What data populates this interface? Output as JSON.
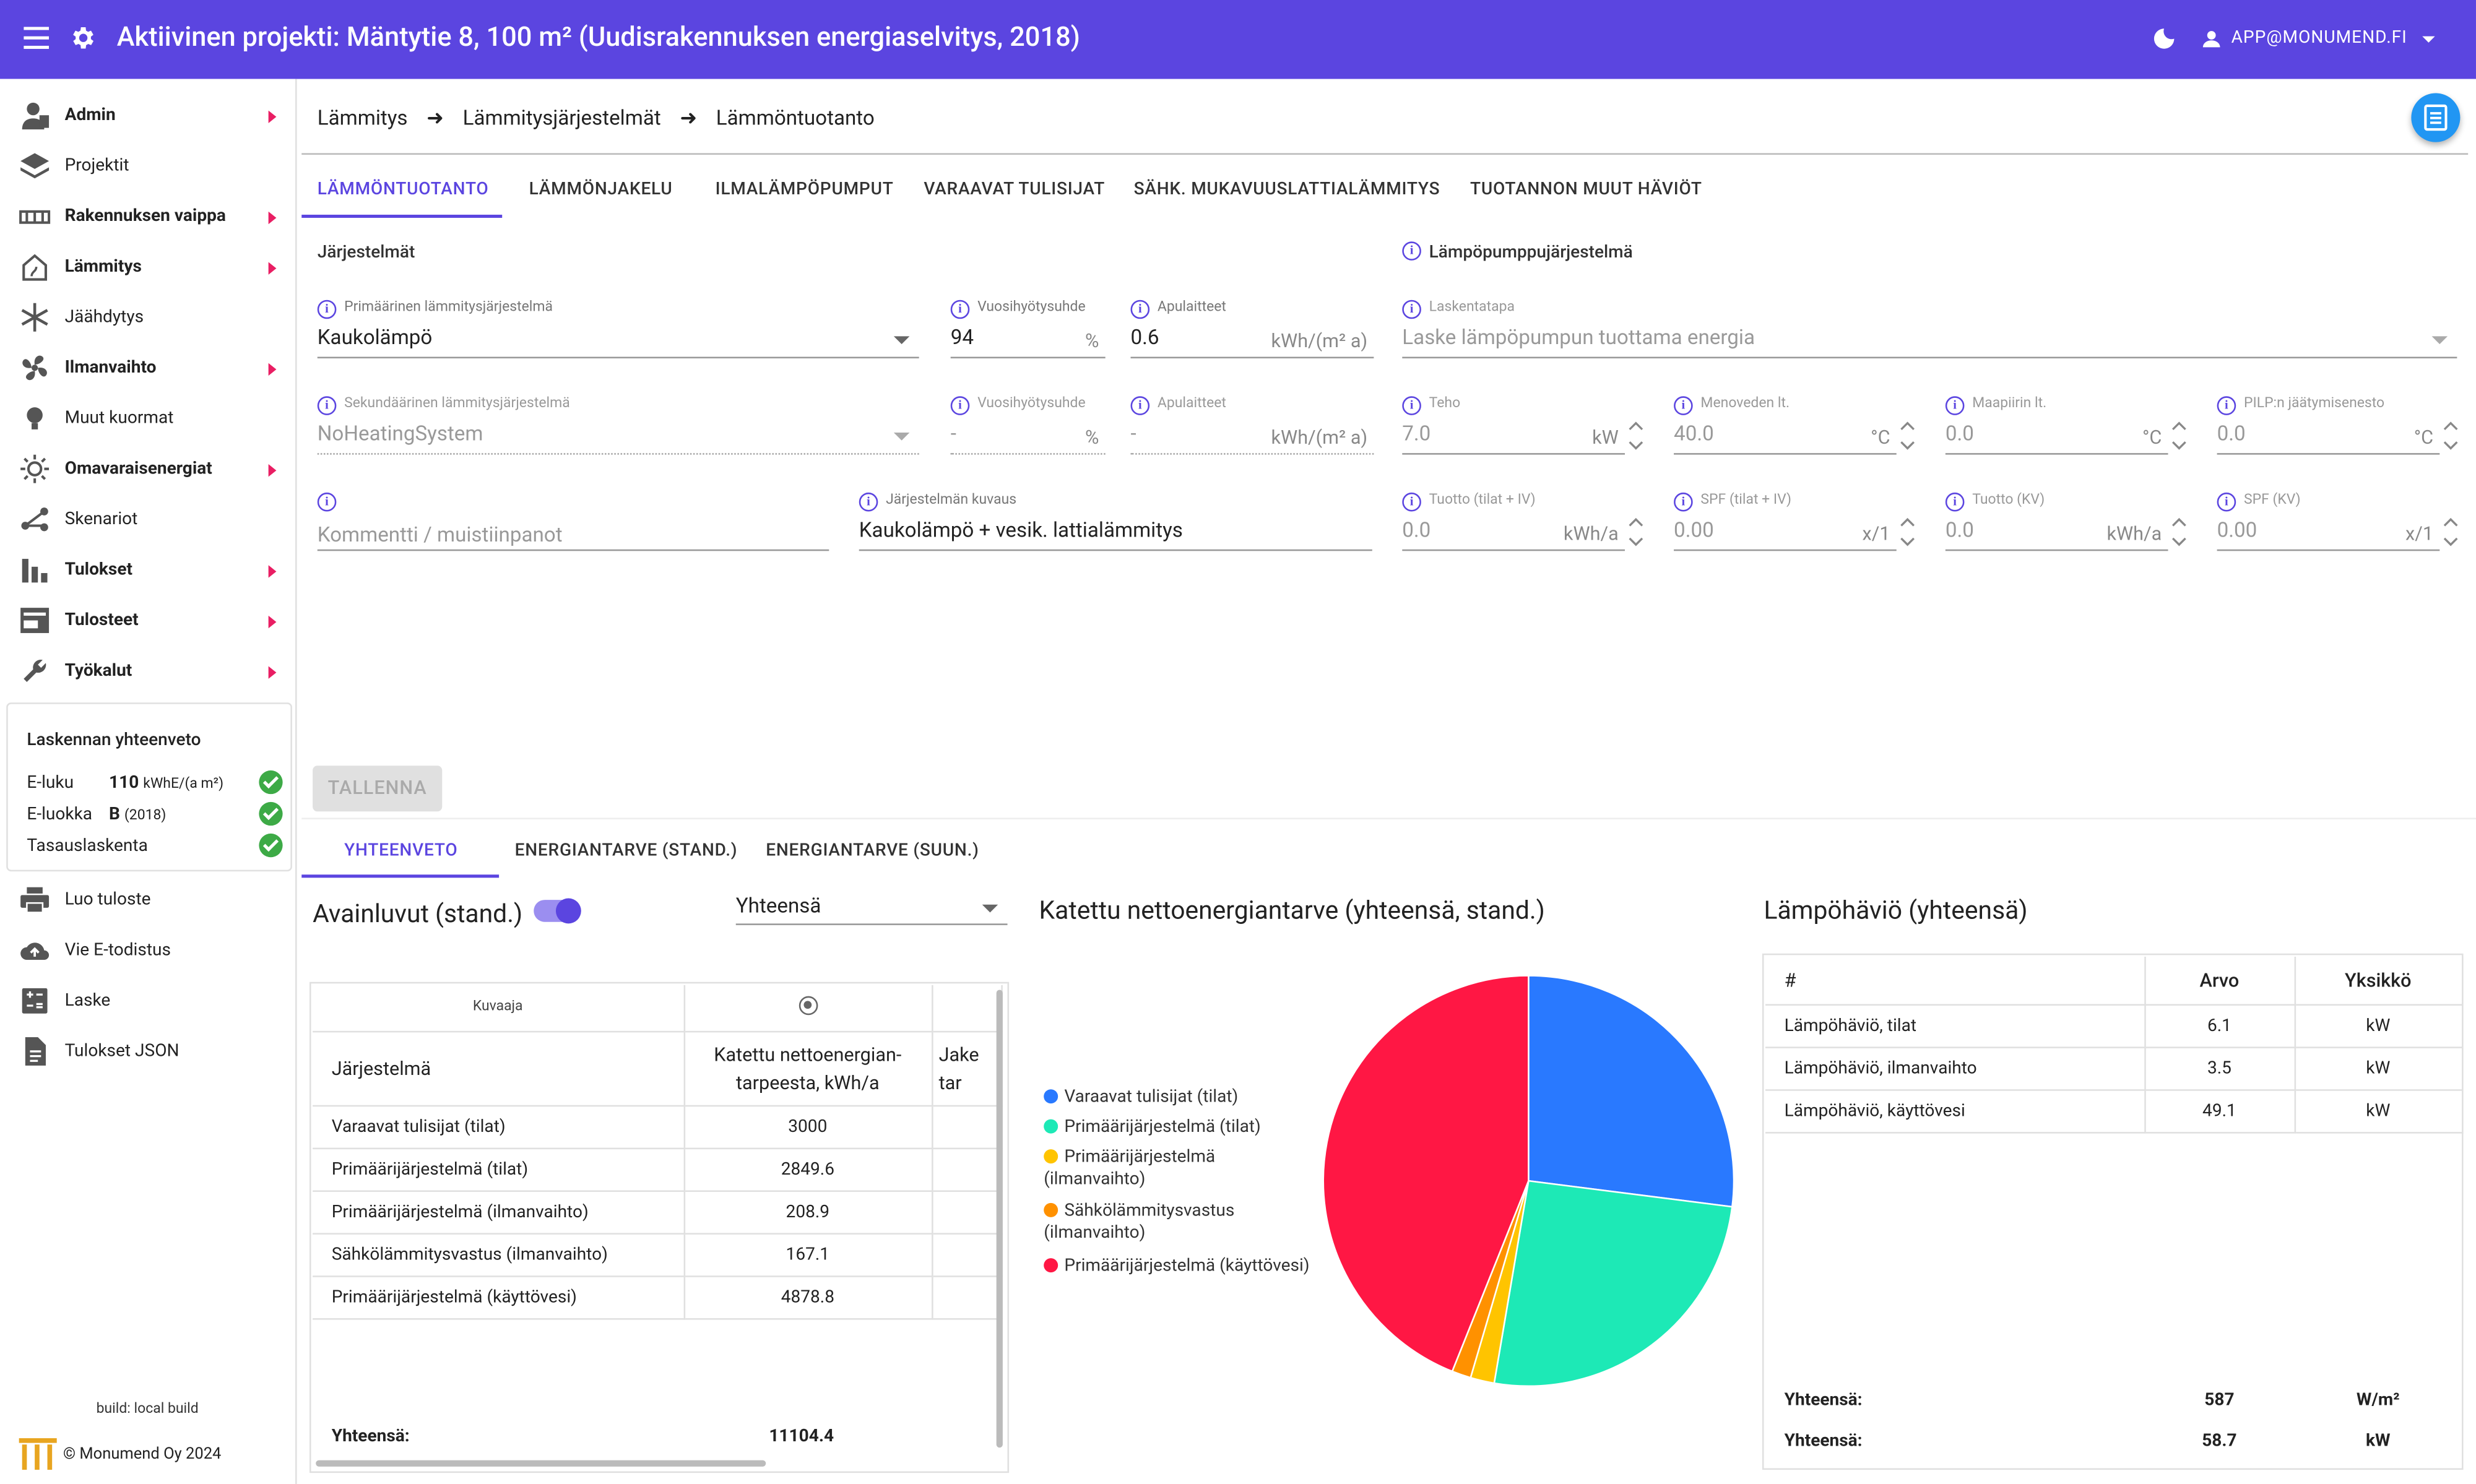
{
  "header": {
    "title": "Aktiivinen projekti: Mäntytie 8, 100 m² (Uudisrakennuksen energiaselvitys, 2018)",
    "user": "APP@MONUMEND.FI"
  },
  "sidebar": {
    "items": [
      {
        "label": "Admin",
        "icon": "admin-icon",
        "bold": true,
        "arrow": true
      },
      {
        "label": "Projektit",
        "icon": "layers-icon",
        "bold": false,
        "arrow": false
      },
      {
        "label": "Rakennuksen vaippa",
        "icon": "wall-icon",
        "bold": true,
        "arrow": true
      },
      {
        "label": "Lämmitys",
        "icon": "house-heating-icon",
        "bold": true,
        "arrow": true
      },
      {
        "label": "Jäähdytys",
        "icon": "snowflake-icon",
        "bold": false,
        "arrow": false
      },
      {
        "label": "Ilmanvaihto",
        "icon": "fan-icon",
        "bold": true,
        "arrow": true
      },
      {
        "label": "Muut kuormat",
        "icon": "lightbulb-icon",
        "bold": false,
        "arrow": false
      },
      {
        "label": "Omavaraisenergiat",
        "icon": "sun-icon",
        "bold": true,
        "arrow": true
      },
      {
        "label": "Skenariot",
        "icon": "branch-icon",
        "bold": false,
        "arrow": false
      },
      {
        "label": "Tulokset",
        "icon": "bar-chart-icon",
        "bold": true,
        "arrow": true
      },
      {
        "label": "Tulosteet",
        "icon": "document-icon",
        "bold": true,
        "arrow": true
      },
      {
        "label": "Työkalut",
        "icon": "wrench-icon",
        "bold": true,
        "arrow": true
      }
    ],
    "summary": {
      "title": "Laskennan yhteenveto",
      "eluku_label": "E-luku",
      "eluku_value": "110",
      "eluku_unit": "kWhE/(a m²)",
      "eluokka_label": "E-luokka",
      "eluokka_value": "B",
      "eluokka_year": "(2018)",
      "tasaus_label": "Tasauslaskenta"
    },
    "actions": [
      {
        "label": "Luo tuloste",
        "icon": "printer-icon"
      },
      {
        "label": "Vie E-todistus",
        "icon": "cloud-upload-icon"
      },
      {
        "label": "Laske",
        "icon": "calculator-icon"
      },
      {
        "label": "Tulokset JSON",
        "icon": "file-icon"
      }
    ],
    "build": "build: local build",
    "copyright": "© Monumend Oy 2024"
  },
  "breadcrumb": [
    "Lämmitys",
    "Lämmitysjärjestelmät",
    "Lämmöntuotanto"
  ],
  "tabs": [
    "LÄMMÖNTUOTANTO",
    "LÄMMÖNJAKELU",
    "ILMALÄMPÖPUMPUT",
    "VARAAVAT TULISIJAT",
    "SÄHK. MUKAVUUSLATTIALÄMMITYS",
    "TUOTANNON MUUT HÄVIÖT"
  ],
  "form": {
    "sec_systems": "Järjestelmät",
    "sec_heatpump": "Lämpöpumppujärjestelmä",
    "primary": {
      "label": "Primäärinen lämmitysjärjestelmä",
      "value": "Kaukolämpö"
    },
    "p_eff": {
      "label": "Vuosihyötysuhde",
      "value": "94",
      "unit": "%"
    },
    "p_aux": {
      "label": "Apulaitteet",
      "value": "0.6",
      "unit": "kWh/(m² a)"
    },
    "calc": {
      "label": "Laskentatapa",
      "value": "Laske lämpöpumpun tuottama energia"
    },
    "secondary": {
      "label": "Sekundäärinen lämmitysjärjestelmä",
      "value": "NoHeatingSystem"
    },
    "s_eff": {
      "label": "Vuosihyötysuhde",
      "value": "-",
      "unit": "%"
    },
    "s_aux": {
      "label": "Apulaitteet",
      "value": "-",
      "unit": "kWh/(m² a)"
    },
    "power": {
      "label": "Teho",
      "value": "7.0",
      "unit": "kW"
    },
    "flow": {
      "label": "Menoveden lt.",
      "value": "40.0",
      "unit": "°C"
    },
    "ground": {
      "label": "Maapiirin lt.",
      "value": "0.0",
      "unit": "°C"
    },
    "antifreeze": {
      "label": "PILP:n jäätymisenesto",
      "value": "0.0",
      "unit": "°C"
    },
    "comment": {
      "placeholder": "Kommentti / muistiinpanot"
    },
    "desc": {
      "label": "Järjestelmän kuvaus",
      "value": "Kaukolämpö + vesik. lattialämmitys"
    },
    "prod": {
      "label": "Tuotto (tilat + IV)",
      "value": "0.0",
      "unit": "kWh/a"
    },
    "spf": {
      "label": "SPF (tilat + IV)",
      "value": "0.00",
      "unit": "x/1"
    },
    "prod_kv": {
      "label": "Tuotto (KV)",
      "value": "0.0",
      "unit": "kWh/a"
    },
    "spf_kv": {
      "label": "SPF (KV)",
      "value": "0.00",
      "unit": "x/1"
    },
    "save": "TALLENNA"
  },
  "bottom_tabs": [
    "YHTEENVETO",
    "ENERGIANTARVE (STAND.)",
    "ENERGIANTARVE (SUUN.)"
  ],
  "keyfigures": {
    "title": "Avainluvut (stand.)",
    "select": "Yhteensä",
    "col_kuvaaja": "Kuvaaja",
    "col_system": "Järjestelmä",
    "col_need1": "Katettu nettoenergian-",
    "col_need2": "tarpeesta, kWh/a",
    "col_jake1": "Jake",
    "col_jake2": "tar",
    "rows": [
      {
        "name": "Varaavat tulisijat (tilat)",
        "value": "3000"
      },
      {
        "name": "Primäärijärjestelmä (tilat)",
        "value": "2849.6"
      },
      {
        "name": "Primäärijärjestelmä (ilmanvaihto)",
        "value": "208.9"
      },
      {
        "name": "Sähkölämmitysvastus (ilmanvaihto)",
        "value": "167.1"
      },
      {
        "name": "Primäärijärjestelmä (käyttövesi)",
        "value": "4878.8"
      }
    ],
    "total_label": "Yhteensä:",
    "total_value": "11104.4"
  },
  "chart_data": {
    "type": "pie",
    "title": "Katettu nettoenergiantarve (yhteensä, stand.)",
    "legend_position": "left",
    "categories": [
      "Varaavat tulisijat (tilat)",
      "Primäärijärjestelmä (tilat)",
      "Primäärijärjestelmä (ilmanvaihto)",
      "Sähkölämmitysvastus (ilmanvaihto)",
      "Primäärijärjestelmä (käyttövesi)"
    ],
    "values": [
      3000,
      2849.6,
      208.9,
      167.1,
      4878.8
    ],
    "colors": [
      "#2979ff",
      "#1de9b6",
      "#ffc400",
      "#ff9100",
      "#ff1744"
    ]
  },
  "heatloss": {
    "title": "Lämpöhäviö (yhteensä)",
    "headers": [
      "#",
      "Arvo",
      "Yksikkö"
    ],
    "rows": [
      {
        "name": "Lämpöhäviö, tilat",
        "value": "6.1",
        "unit": "kW"
      },
      {
        "name": "Lämpöhäviö, ilmanvaihto",
        "value": "3.5",
        "unit": "kW"
      },
      {
        "name": "Lämpöhäviö, käyttövesi",
        "value": "49.1",
        "unit": "kW"
      }
    ],
    "totals": [
      {
        "label": "Yhteensä:",
        "value": "587",
        "unit": "W/m²"
      },
      {
        "label": "Yhteensä:",
        "value": "58.7",
        "unit": "kW"
      }
    ]
  }
}
